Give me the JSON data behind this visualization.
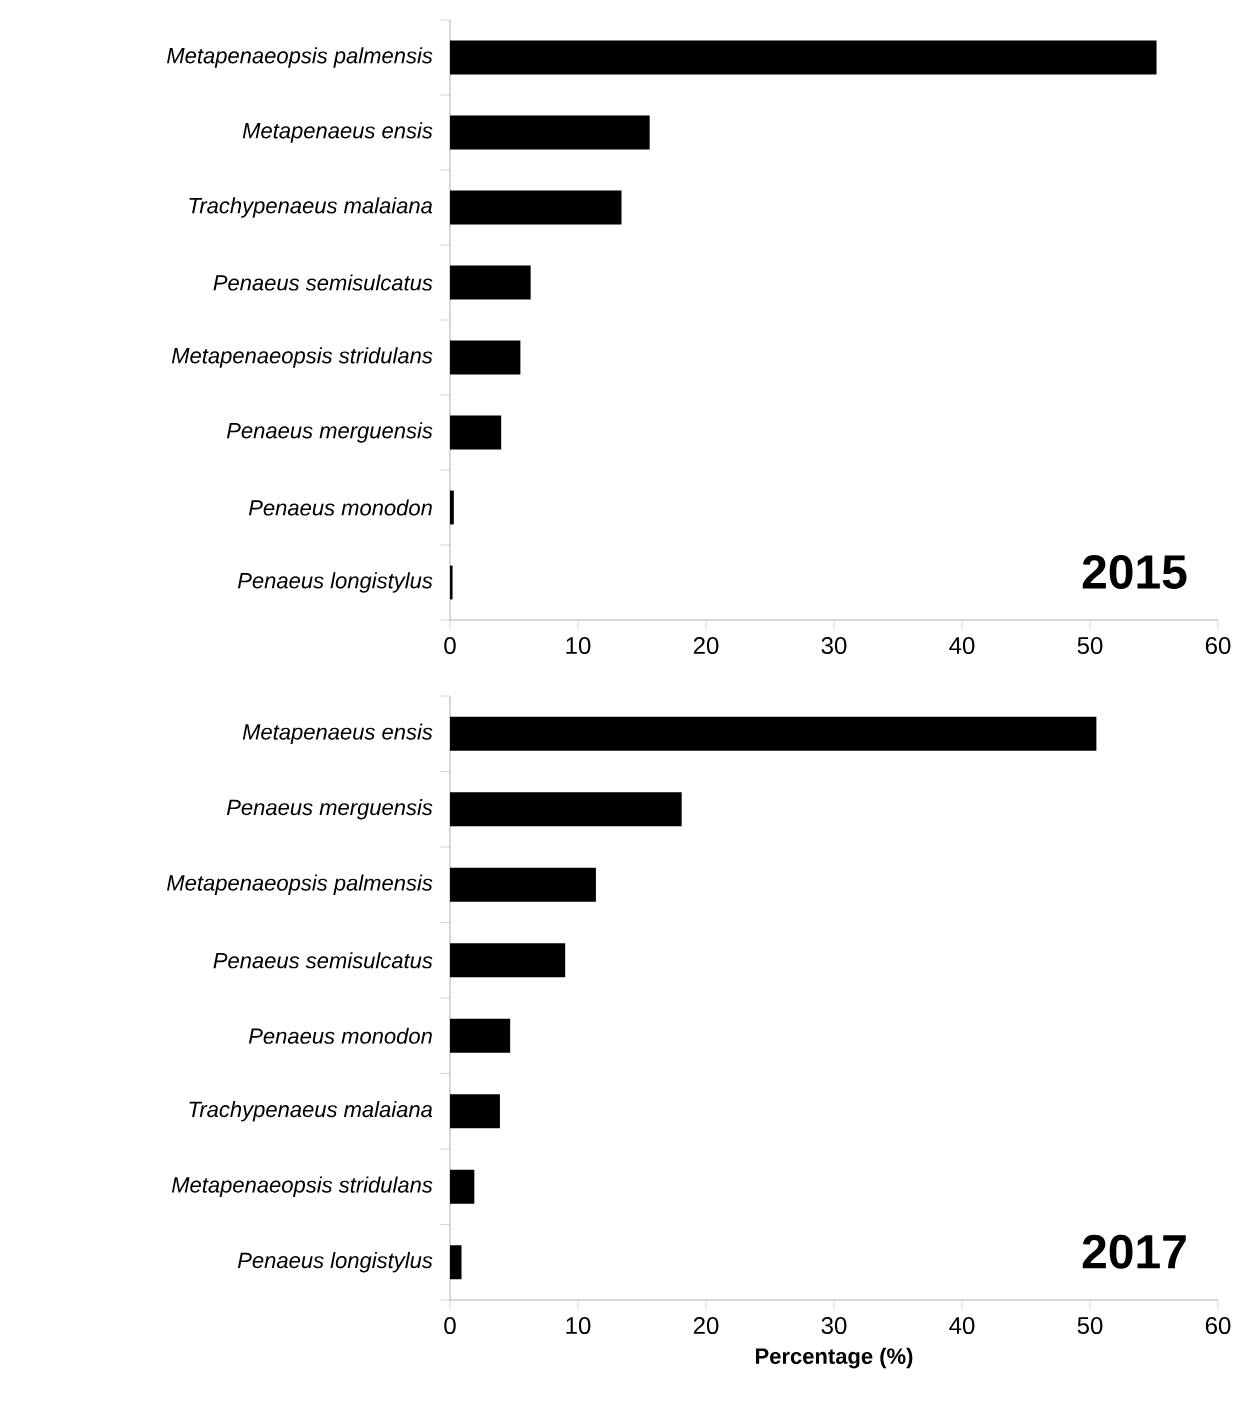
{
  "chart_data": [
    {
      "type": "bar",
      "orientation": "horizontal",
      "categories": [
        "Metapenaeopsis palmensis",
        "Metapenaeus ensis",
        "Trachypenaeus malaiana",
        "Penaeus semisulcatus",
        "Metapenaeopsis stridulans",
        "Penaeus merguensis",
        "Penaeus monodon",
        "Penaeus longistylus"
      ],
      "values": [
        55.2,
        15.6,
        13.4,
        6.3,
        5.5,
        4.0,
        0.3,
        0.2
      ],
      "color": "#000000",
      "xlim": [
        0,
        60
      ],
      "xticks": [
        0,
        10,
        20,
        30,
        40,
        50,
        60
      ],
      "grid": false,
      "annotations": [
        "2015"
      ]
    },
    {
      "type": "bar",
      "orientation": "horizontal",
      "categories": [
        "Metapenaeus ensis",
        "Penaeus merguensis",
        "Metapenaeopsis palmensis",
        "Penaeus semisulcatus",
        "Penaeus monodon",
        "Trachypenaeus malaiana",
        "Metapenaeopsis stridulans",
        "Penaeus longistylus"
      ],
      "values": [
        50.5,
        18.1,
        11.4,
        9.0,
        4.7,
        3.9,
        1.9,
        0.9
      ],
      "color": "#000000",
      "xlim": [
        0,
        60
      ],
      "xticks": [
        0,
        10,
        20,
        30,
        40,
        50,
        60
      ],
      "grid": false,
      "xlabel": "Percentage (%)",
      "annotations": [
        "2017"
      ]
    }
  ]
}
